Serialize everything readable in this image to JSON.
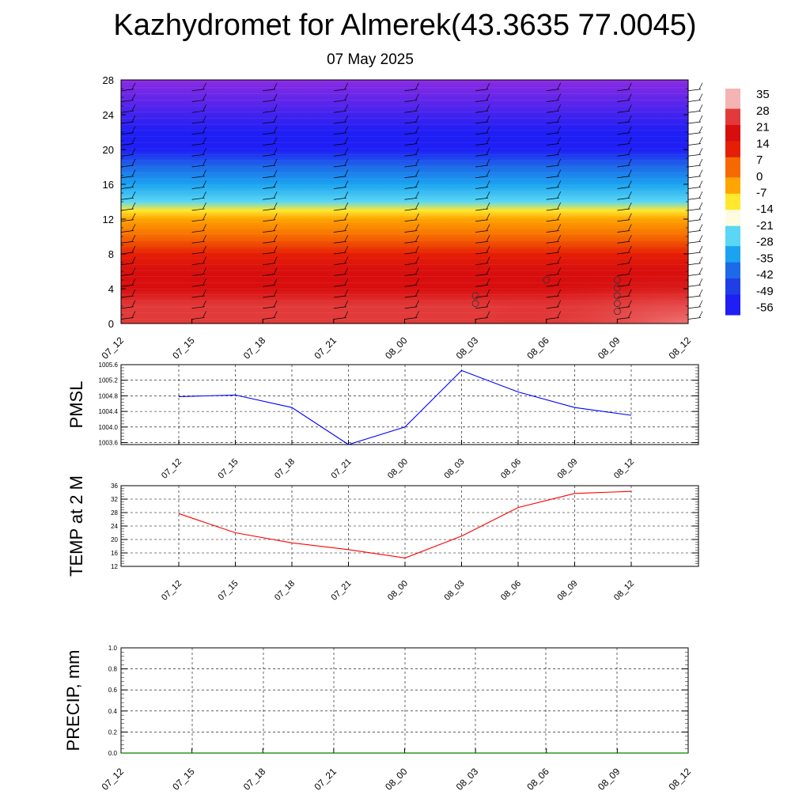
{
  "title": "Kazhydromet for Almerek(43.3635 77.0045)",
  "subtitle": "07 May 2025",
  "time_labels": [
    "07_12",
    "07_15",
    "07_18",
    "07_21",
    "08_00",
    "08_03",
    "08_06",
    "08_09",
    "08_12"
  ],
  "colorbar": {
    "labels": [
      "35",
      "28",
      "21",
      "14",
      "7",
      "0",
      "-7",
      "-14",
      "-21",
      "-28",
      "-35",
      "-42",
      "-49",
      "-56"
    ],
    "stops": [
      {
        "value": 35,
        "color": "#f4b4b4"
      },
      {
        "value": 28,
        "color": "#e23a3a"
      },
      {
        "value": 21,
        "color": "#d80e0e"
      },
      {
        "value": 14,
        "color": "#e61e05"
      },
      {
        "value": 7,
        "color": "#f56a00"
      },
      {
        "value": 0,
        "color": "#ffa400"
      },
      {
        "value": -7,
        "color": "#ffe82e"
      },
      {
        "value": -14,
        "color": "#fffbe0"
      },
      {
        "value": -21,
        "color": "#5ad7f4"
      },
      {
        "value": -28,
        "color": "#1ba3f0"
      },
      {
        "value": -35,
        "color": "#1d6ae8"
      },
      {
        "value": -42,
        "color": "#1f3ee6"
      },
      {
        "value": -49,
        "color": "#1e1ef5"
      },
      {
        "value": -56,
        "color": "#8a2be2"
      }
    ]
  },
  "chart_data": [
    {
      "type": "heatmap",
      "description_of_values": "temperature cross-section by height",
      "ylim": [
        0,
        28
      ],
      "yticks": [
        "0",
        "4",
        "8",
        "12",
        "16",
        "20",
        "24",
        "28"
      ],
      "x": [
        "07_12",
        "07_15",
        "07_18",
        "07_21",
        "08_00",
        "08_03",
        "08_06",
        "08_09",
        "08_12"
      ],
      "profile": [
        {
          "y": 0,
          "value": 22
        },
        {
          "y": 2,
          "value": 21
        },
        {
          "y": 4,
          "value": 19
        },
        {
          "y": 6,
          "value": 16
        },
        {
          "y": 8,
          "value": 10
        },
        {
          "y": 10,
          "value": 3
        },
        {
          "y": 12,
          "value": -6
        },
        {
          "y": 13,
          "value": -14
        },
        {
          "y": 14,
          "value": -22
        },
        {
          "y": 16,
          "value": -32
        },
        {
          "y": 18,
          "value": -42
        },
        {
          "y": 20,
          "value": -50
        },
        {
          "y": 22,
          "value": -56
        },
        {
          "y": 28,
          "value": -58
        }
      ],
      "grid": false
    },
    {
      "type": "line",
      "ylabel": "PMSL",
      "ylim": [
        1003.55,
        1005.6
      ],
      "yticks": [
        "1003.6",
        "1004.0",
        "1004.4",
        "1004.8",
        "1005.2",
        "1005.6"
      ],
      "x": [
        "07_12",
        "07_15",
        "07_18",
        "07_21",
        "08_00",
        "08_03",
        "08_06",
        "08_09",
        "08_12"
      ],
      "series": [
        {
          "values": [
            1004.78,
            1004.82,
            1004.5,
            1003.55,
            1004.0,
            1005.45,
            1004.9,
            1004.5,
            1004.3
          ],
          "color": "#0000ff"
        }
      ],
      "grid": true
    },
    {
      "type": "line",
      "ylabel": "TEMP at 2 M",
      "ylim": [
        12,
        36
      ],
      "yticks": [
        "12",
        "16",
        "20",
        "24",
        "28",
        "32",
        "36"
      ],
      "x": [
        "07_12",
        "07_15",
        "07_18",
        "07_21",
        "08_00",
        "08_03",
        "08_06",
        "08_09",
        "08_12"
      ],
      "series": [
        {
          "values": [
            27.7,
            22.0,
            19.0,
            17.0,
            14.5,
            21.0,
            29.5,
            33.7,
            34.3
          ],
          "color": "#ff0000"
        }
      ],
      "grid": true
    },
    {
      "type": "line",
      "ylabel": "PRECIP, mm",
      "ylim": [
        0.0,
        1.0
      ],
      "yticks": [
        "0.0",
        "0.2",
        "0.4",
        "0.6",
        "0.8",
        "1.0"
      ],
      "x": [
        "07_12",
        "07_15",
        "07_18",
        "07_21",
        "08_00",
        "08_03",
        "08_06",
        "08_09",
        "08_12"
      ],
      "series": [
        {
          "values": [
            0,
            0,
            0,
            0,
            0,
            0,
            0,
            0,
            0
          ],
          "color": "#008000"
        }
      ],
      "grid": true
    }
  ]
}
